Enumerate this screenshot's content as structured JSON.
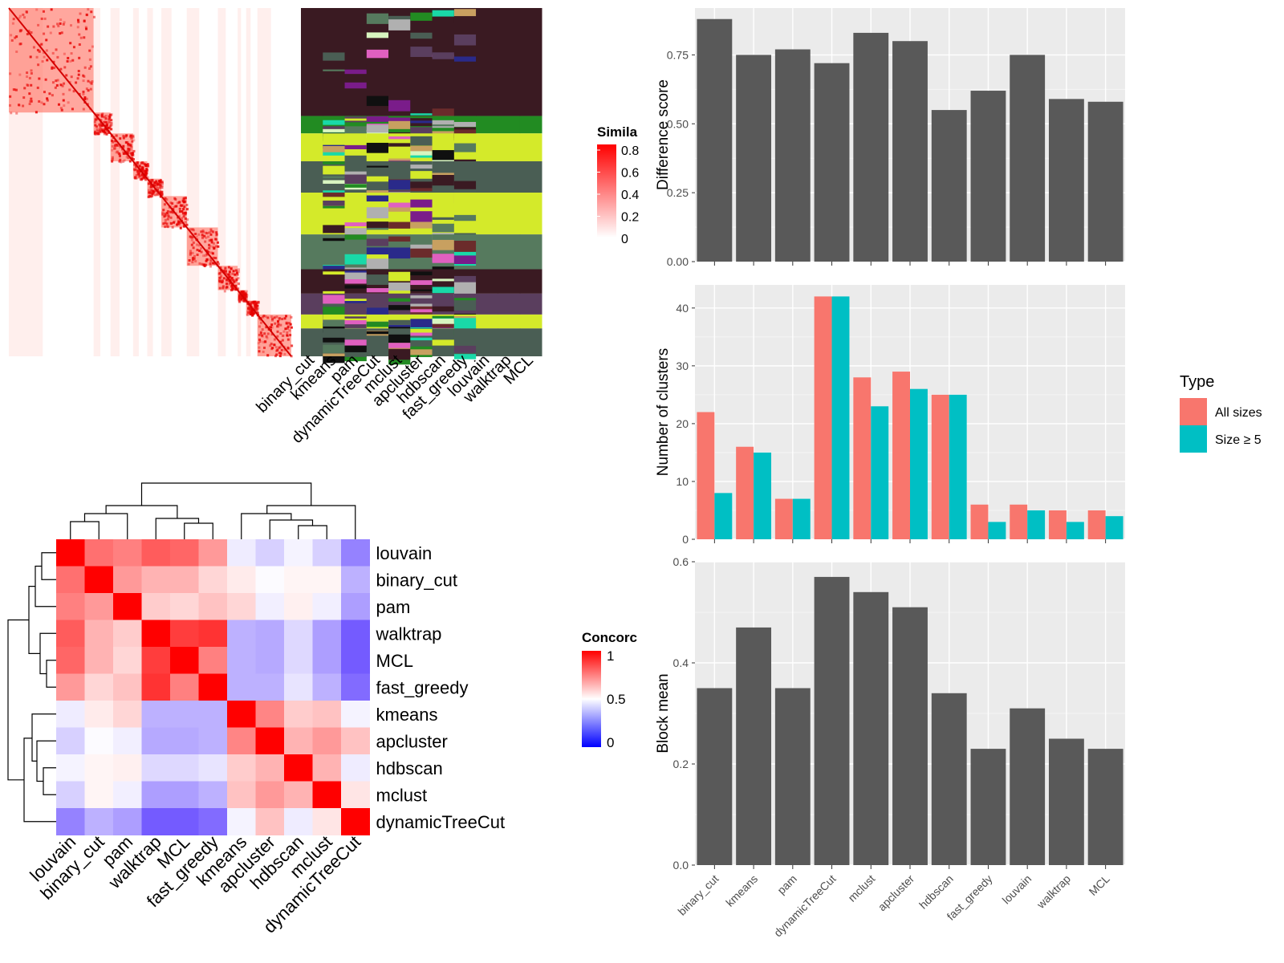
{
  "similarity_panel": {
    "legend_title": "Simila",
    "legend_ticks": [
      "0.8",
      "0.6",
      "0.4",
      "0.2",
      "0"
    ],
    "methods": [
      "binary_cut",
      "kmeans",
      "pam",
      "dynamicTreeCut",
      "mclust",
      "apcluster",
      "hdbscan",
      "fast_greedy",
      "louvain",
      "walktrap",
      "MCL"
    ]
  },
  "chart_data": [
    {
      "type": "heatmap",
      "title": "",
      "row_labels": [
        "louvain",
        "binary_cut",
        "pam",
        "walktrap",
        "MCL",
        "fast_greedy",
        "kmeans",
        "apcluster",
        "hdbscan",
        "mclust",
        "dynamicTreeCut"
      ],
      "col_labels": [
        "louvain",
        "binary_cut",
        "pam",
        "walktrap",
        "MCL",
        "fast_greedy",
        "kmeans",
        "apcluster",
        "hdbscan",
        "mclust",
        "dynamicTreeCut"
      ],
      "values": [
        [
          1.0,
          0.78,
          0.75,
          0.82,
          0.8,
          0.7,
          0.45,
          0.38,
          0.47,
          0.38,
          0.18
        ],
        [
          0.78,
          1.0,
          0.7,
          0.65,
          0.65,
          0.58,
          0.54,
          0.49,
          0.52,
          0.52,
          0.3
        ],
        [
          0.75,
          0.7,
          1.0,
          0.6,
          0.58,
          0.62,
          0.58,
          0.46,
          0.53,
          0.46,
          0.25
        ],
        [
          0.82,
          0.65,
          0.6,
          1.0,
          0.88,
          0.9,
          0.3,
          0.28,
          0.4,
          0.25,
          0.08
        ],
        [
          0.8,
          0.65,
          0.58,
          0.88,
          1.0,
          0.75,
          0.3,
          0.28,
          0.4,
          0.25,
          0.08
        ],
        [
          0.7,
          0.58,
          0.62,
          0.9,
          0.75,
          1.0,
          0.3,
          0.3,
          0.43,
          0.3,
          0.12
        ],
        [
          0.45,
          0.54,
          0.58,
          0.3,
          0.3,
          0.3,
          1.0,
          0.74,
          0.6,
          0.62,
          0.47
        ],
        [
          0.38,
          0.49,
          0.46,
          0.28,
          0.28,
          0.3,
          0.74,
          1.0,
          0.65,
          0.7,
          0.62
        ],
        [
          0.47,
          0.52,
          0.53,
          0.4,
          0.4,
          0.43,
          0.6,
          0.65,
          1.0,
          0.65,
          0.45
        ],
        [
          0.38,
          0.52,
          0.46,
          0.25,
          0.25,
          0.3,
          0.62,
          0.7,
          0.65,
          1.0,
          0.55
        ],
        [
          0.18,
          0.3,
          0.25,
          0.08,
          0.08,
          0.12,
          0.47,
          0.62,
          0.45,
          0.55,
          1.0
        ]
      ],
      "legend_title": "Concorc",
      "legend_ticks": [
        "1",
        "0.5",
        "0"
      ],
      "colors": {
        "low": "#0000ff",
        "mid": "#ffffff",
        "high": "#ff0000"
      }
    },
    {
      "type": "bar",
      "categories": [
        "binary_cut",
        "kmeans",
        "pam",
        "dynamicTreeCut",
        "mclust",
        "apcluster",
        "hdbscan",
        "fast_greedy",
        "louvain",
        "walktrap",
        "MCL"
      ],
      "values": [
        0.88,
        0.75,
        0.77,
        0.72,
        0.83,
        0.8,
        0.55,
        0.62,
        0.75,
        0.59,
        0.58
      ],
      "ylabel": "Difference score",
      "ylim": [
        0,
        0.92
      ],
      "yticks": [
        "0.00",
        "0.25",
        "0.50",
        "0.75"
      ],
      "grid": true,
      "bar_color": "#595959"
    },
    {
      "type": "bar",
      "categories": [
        "binary_cut",
        "kmeans",
        "pam",
        "dynamicTreeCut",
        "mclust",
        "apcluster",
        "hdbscan",
        "fast_greedy",
        "louvain",
        "walktrap",
        "MCL"
      ],
      "series": [
        {
          "name": "All sizes",
          "values": [
            22,
            16,
            7,
            42,
            28,
            29,
            25,
            6,
            6,
            5,
            5
          ],
          "color": "#f8766d"
        },
        {
          "name": "Size ≥ 5",
          "values": [
            8,
            15,
            7,
            42,
            23,
            26,
            25,
            3,
            5,
            3,
            4
          ],
          "color": "#00bfc4"
        }
      ],
      "ylabel": "Number of clusters",
      "ylim": [
        0,
        44
      ],
      "yticks": [
        "0",
        "10",
        "20",
        "30",
        "40"
      ],
      "legend_title": "Type",
      "legend_position": "right",
      "grid": true
    },
    {
      "type": "bar",
      "categories": [
        "binary_cut",
        "kmeans",
        "pam",
        "dynamicTreeCut",
        "mclust",
        "apcluster",
        "hdbscan",
        "fast_greedy",
        "louvain",
        "walktrap",
        "MCL"
      ],
      "values": [
        0.35,
        0.47,
        0.35,
        0.57,
        0.54,
        0.51,
        0.34,
        0.23,
        0.31,
        0.25,
        0.23
      ],
      "ylabel": "Block mean",
      "ylim": [
        0,
        0.6
      ],
      "yticks": [
        "0.0",
        "0.2",
        "0.4",
        "0.6"
      ],
      "grid": true,
      "bar_color": "#595959"
    }
  ]
}
